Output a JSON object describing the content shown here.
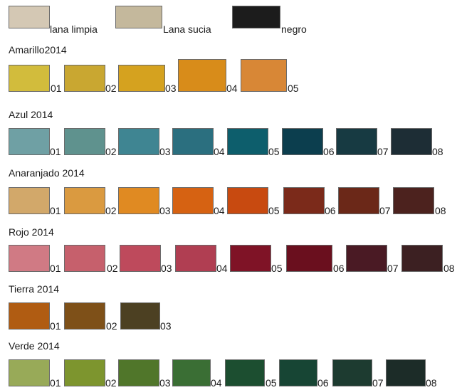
{
  "base": {
    "items": [
      {
        "label": "lana limpia",
        "color": "#d4c8b4"
      },
      {
        "label": "Lana sucia",
        "color": "#c4b89c"
      },
      {
        "label": "negro",
        "color": "#1c1c1c"
      }
    ]
  },
  "groups": [
    {
      "title": "Amarillo2014",
      "items": [
        {
          "label": "01",
          "color": "#d2bc3c"
        },
        {
          "label": "02",
          "color": "#c9a731"
        },
        {
          "label": "03",
          "color": "#d5a21f"
        },
        {
          "label": "04",
          "color": "#d88c1a"
        },
        {
          "label": "05",
          "color": "#d88736"
        }
      ]
    },
    {
      "title": "Azul 2014",
      "items": [
        {
          "label": "01",
          "color": "#6fa0a4"
        },
        {
          "label": "02",
          "color": "#5f928e"
        },
        {
          "label": "03",
          "color": "#3f8592"
        },
        {
          "label": "04",
          "color": "#2b6f7f"
        },
        {
          "label": "05",
          "color": "#0d5e6c"
        },
        {
          "label": "06",
          "color": "#0c3e4e"
        },
        {
          "label": "07",
          "color": "#173a42"
        },
        {
          "label": "08",
          "color": "#1d2d35"
        }
      ]
    },
    {
      "title": "Anaranjado 2014",
      "items": [
        {
          "label": "01",
          "color": "#d2a86a"
        },
        {
          "label": "02",
          "color": "#da9a40"
        },
        {
          "label": "03",
          "color": "#e08a22"
        },
        {
          "label": "04",
          "color": "#d66212"
        },
        {
          "label": "05",
          "color": "#c84a10"
        },
        {
          "label": "06",
          "color": "#7b2a1a"
        },
        {
          "label": "07",
          "color": "#6b2818"
        },
        {
          "label": "08",
          "color": "#4c221e"
        }
      ]
    },
    {
      "title": "Rojo 2014",
      "items": [
        {
          "label": "01",
          "color": "#d07a84"
        },
        {
          "label": "02",
          "color": "#c6606c"
        },
        {
          "label": "03",
          "color": "#be4a5c"
        },
        {
          "label": "04",
          "color": "#b03e52"
        },
        {
          "label": "05",
          "color": "#7f1326"
        },
        {
          "label": "06",
          "color": "#6a0f1e"
        },
        {
          "label": "07",
          "color": "#4a1a24"
        },
        {
          "label": "08",
          "color": "#3c2022"
        }
      ]
    },
    {
      "title": "Tierra 2014",
      "items": [
        {
          "label": "01",
          "color": "#b05c12"
        },
        {
          "label": "02",
          "color": "#7e5018"
        },
        {
          "label": "03",
          "color": "#4c4022"
        }
      ]
    },
    {
      "title": "Verde 2014",
      "items": [
        {
          "label": "01",
          "color": "#98aa58"
        },
        {
          "label": "02",
          "color": "#7d952e"
        },
        {
          "label": "03",
          "color": "#50762a"
        },
        {
          "label": "04",
          "color": "#3a6e34"
        },
        {
          "label": "05",
          "color": "#1c4e30"
        },
        {
          "label": "06",
          "color": "#174534"
        },
        {
          "label": "07",
          "color": "#1d3b30"
        },
        {
          "label": "08",
          "color": "#1c2c28"
        }
      ]
    }
  ]
}
